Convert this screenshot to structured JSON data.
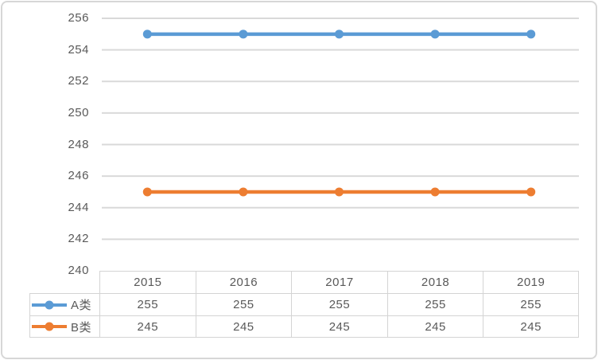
{
  "chart_data": {
    "type": "line",
    "categories": [
      "2015",
      "2016",
      "2017",
      "2018",
      "2019"
    ],
    "series": [
      {
        "name": "A类",
        "values": [
          255,
          255,
          255,
          255,
          255
        ],
        "color": "#5B9BD5"
      },
      {
        "name": "B类",
        "values": [
          245,
          245,
          245,
          245,
          245
        ],
        "color": "#ED7D31"
      }
    ],
    "title": "",
    "xlabel": "",
    "ylabel": "",
    "ylim": [
      240,
      256
    ],
    "yticks": [
      256,
      254,
      252,
      250,
      248,
      246,
      244,
      242,
      240
    ],
    "grid": true,
    "gridline_color": "#D9D9D9",
    "marker": "circle",
    "legend_position": "data-table-left"
  },
  "styles": {
    "frame_border_color": "#D7D7D7",
    "table_border_color": "#D4D4D4",
    "text_color": "#595959",
    "background": "#FFFFFF"
  }
}
